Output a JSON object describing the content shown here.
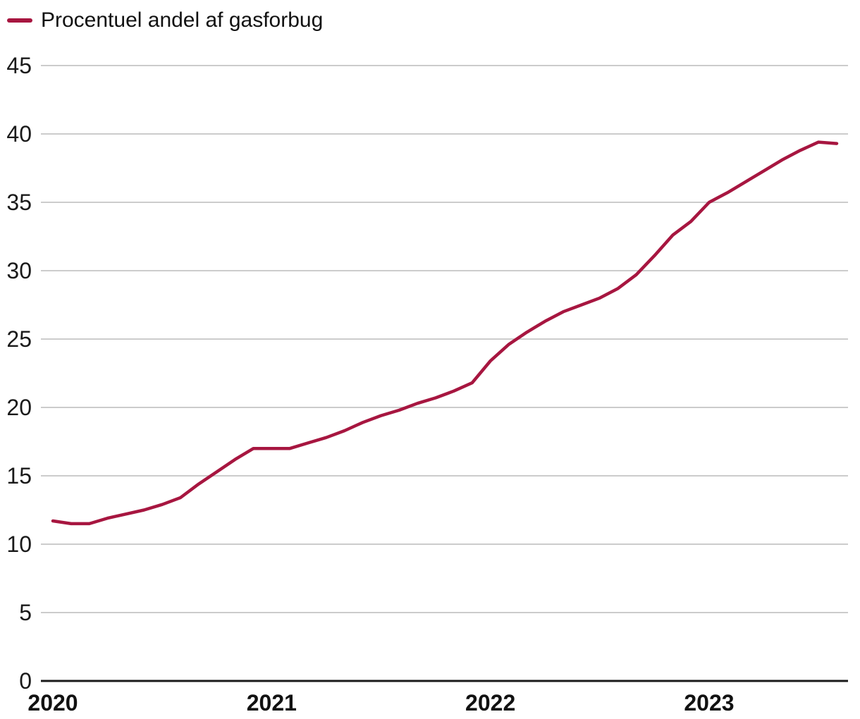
{
  "legend": {
    "series_label": "Procentuel andel af gasforbug"
  },
  "colors": {
    "line": "#A71640",
    "grid": "#cccccc",
    "zero_axis": "#1a1a1a",
    "text": "#1a1a1a"
  },
  "chart_data": {
    "type": "line",
    "title": "",
    "xlabel": "",
    "ylabel": "",
    "ylim": [
      0,
      45
    ],
    "y_ticks": [
      0,
      5,
      10,
      15,
      20,
      25,
      30,
      35,
      40,
      45
    ],
    "x_tick_labels": [
      "2020",
      "2021",
      "2022",
      "2023"
    ],
    "x_tick_indices": [
      0,
      12,
      24,
      36
    ],
    "x_start": "2020-01",
    "x_interval": "monthly",
    "grid": "horizontal",
    "legend_position": "top-left",
    "series": [
      {
        "name": "Procentuel andel af gasforbug",
        "color": "#A71640",
        "values": [
          11.7,
          11.5,
          11.5,
          11.9,
          12.2,
          12.5,
          12.9,
          13.4,
          14.4,
          15.3,
          16.2,
          17.0,
          17.0,
          17.0,
          17.4,
          17.8,
          18.3,
          18.9,
          19.4,
          19.8,
          20.3,
          20.7,
          21.2,
          21.8,
          23.4,
          24.6,
          25.5,
          26.3,
          27.0,
          27.5,
          28.0,
          28.7,
          29.7,
          31.1,
          32.6,
          33.6,
          35.0,
          35.7,
          36.5,
          37.3,
          38.1,
          38.8,
          39.4,
          39.3
        ]
      }
    ]
  }
}
